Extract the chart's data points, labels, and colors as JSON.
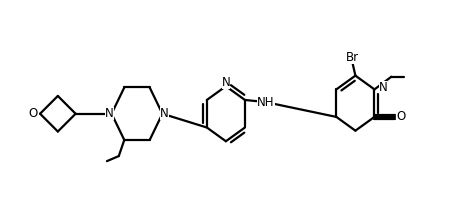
{
  "background_color": "#ffffff",
  "line_color": "#000000",
  "line_width": 1.6,
  "font_size": 8.5,
  "figsize": [
    4.67,
    2.19
  ],
  "dpi": 100,
  "xlim": [
    -0.5,
    10.5
  ],
  "ylim": [
    0.5,
    4.8
  ]
}
